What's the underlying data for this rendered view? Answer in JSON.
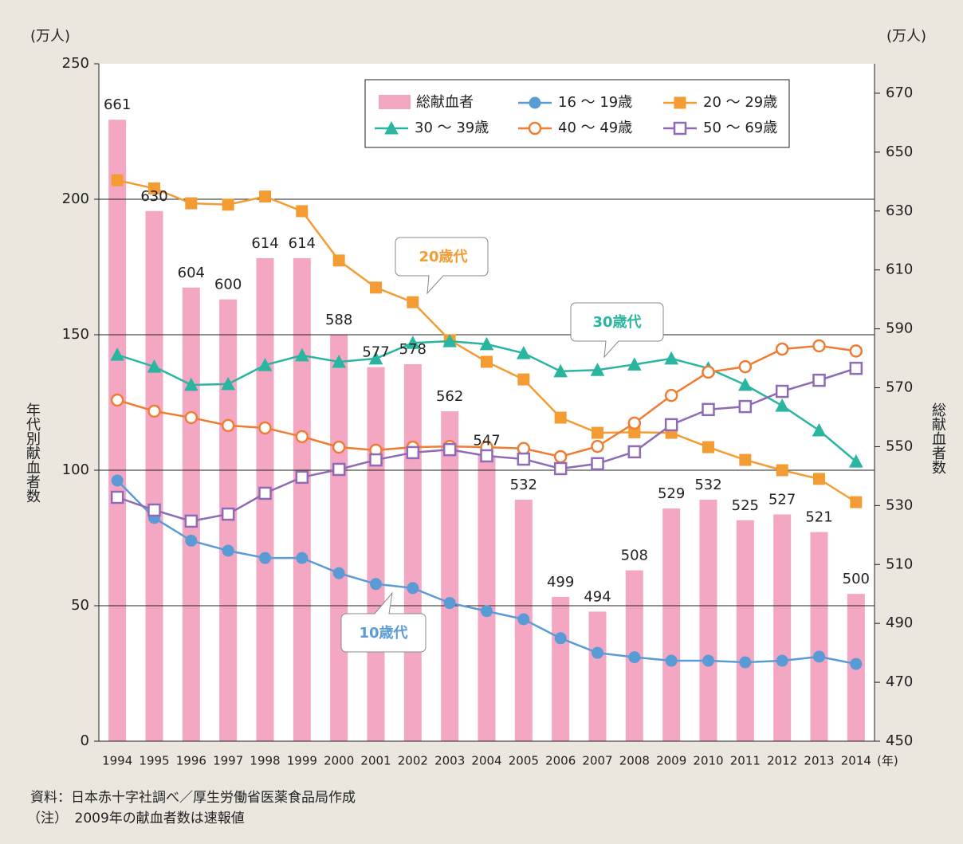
{
  "chart_data": {
    "type": "bar_line",
    "y_unit": "(万人)",
    "y2_unit": "(万人)",
    "x_unit": "(年)",
    "ylabel": "年代別献血者数",
    "y2label": "総献血者数",
    "categories": [
      "1994",
      "1995",
      "1996",
      "1997",
      "1998",
      "1999",
      "2000",
      "2001",
      "2002",
      "2003",
      "2004",
      "2005",
      "2006",
      "2007",
      "2008",
      "2009",
      "2010",
      "2011",
      "2012",
      "2013",
      "2014"
    ],
    "bar": {
      "name": "総献血者",
      "color": "#f4a7c3",
      "axis": "y2",
      "values": [
        661,
        630,
        604,
        600,
        614,
        614,
        588,
        577,
        578,
        562,
        547,
        532,
        499,
        494,
        508,
        529,
        532,
        525,
        527,
        521,
        500
      ]
    },
    "series": [
      {
        "name": "16 ～ 19歳",
        "color": "#5b9bd5",
        "marker": "circle",
        "filled": true,
        "values": [
          96.2,
          82.4,
          74,
          70.3,
          67.6,
          67.6,
          62,
          58,
          56.5,
          51,
          48,
          45,
          38,
          32.6,
          31,
          29.7,
          29.7,
          29.1,
          29.7,
          31.2,
          28.5
        ]
      },
      {
        "name": "20 ～ 29歳",
        "color": "#f39c34",
        "marker": "square",
        "filled": true,
        "values": [
          207,
          204,
          198.5,
          198,
          201,
          195.6,
          177.4,
          167.4,
          162,
          148,
          140,
          133.5,
          119.4,
          113.8,
          114,
          113.8,
          108.5,
          103.8,
          100,
          96.8,
          88.2
        ]
      },
      {
        "name": "30 ～ 39歳",
        "color": "#2ab5a0",
        "marker": "triangle",
        "filled": true,
        "values": [
          142.6,
          138.2,
          131.5,
          131.8,
          138.8,
          142.4,
          140,
          141.2,
          147,
          147.6,
          146.5,
          143.2,
          136.5,
          137,
          139,
          141.2,
          137.6,
          131.5,
          123.8,
          114.7,
          103.2
        ]
      },
      {
        "name": "40 ～ 49歳",
        "color": "#f07c33",
        "marker": "circle",
        "filled": false,
        "values": [
          125.9,
          121.8,
          119.4,
          116.5,
          115.6,
          112.4,
          108.5,
          107.4,
          108.5,
          108.8,
          108.5,
          108,
          105,
          108.8,
          117.4,
          127.6,
          136.2,
          138.2,
          144.7,
          145.9,
          144
        ]
      },
      {
        "name": "50 ～ 69歳",
        "color": "#8e6bb5",
        "marker": "square",
        "filled": false,
        "values": [
          90,
          85.3,
          81.2,
          83.8,
          91.5,
          97.4,
          100.3,
          103.8,
          106.5,
          107.6,
          105.3,
          104.1,
          100.6,
          102.4,
          106.8,
          116.8,
          122.4,
          123.5,
          129.1,
          133.2,
          137.6
        ]
      }
    ],
    "ylim": [
      0,
      250
    ],
    "yticks": [
      0,
      50,
      100,
      150,
      200,
      250
    ],
    "y2lim": [
      450,
      680
    ],
    "y2ticks": [
      450,
      470,
      490,
      510,
      530,
      550,
      570,
      590,
      610,
      630,
      650,
      670
    ],
    "grid": true,
    "annotations": [
      "20歳代",
      "30歳代",
      "10歳代"
    ],
    "notes": [
      "資料：日本赤十字社調べ／厚生労働省医薬食品局作成",
      "（注）　2009年の献血者数は速報値"
    ]
  }
}
